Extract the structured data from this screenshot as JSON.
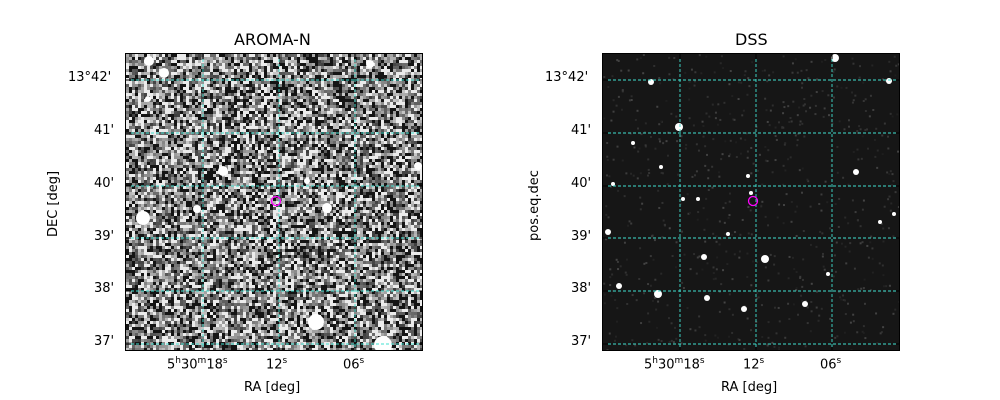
{
  "panels": [
    {
      "title": "AROMA-N",
      "xlabel": "RA [deg]",
      "ylabel": "DEC [deg]",
      "style": "noisy-grayscale"
    },
    {
      "title": "DSS",
      "xlabel": "RA [deg]",
      "ylabel": "pos.eq.dec",
      "style": "dark-sky"
    }
  ],
  "y_ticks": [
    "13°42'",
    "41'",
    "40'",
    "39'",
    "38'",
    "37'"
  ],
  "x_ticks": [
    {
      "h": "5",
      "hs": "h",
      "m": "30",
      "ms": "m",
      "s": "18",
      "ss": "s"
    },
    {
      "s": "12",
      "ss": "s"
    },
    {
      "s": "06",
      "ss": "s"
    }
  ],
  "colors": {
    "grid": "#40e0d0",
    "marker": "#ff00ff"
  }
}
